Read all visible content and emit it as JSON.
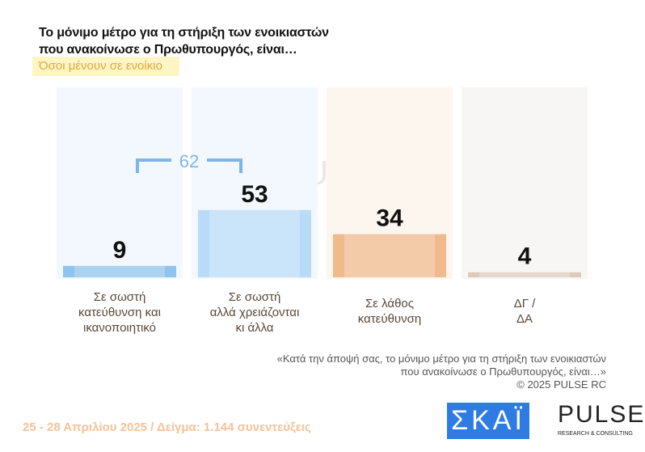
{
  "title_line1": "Το μόνιμο μέτρο για τη στήριξη των ενοικιαστών",
  "title_line2": "που ανακοίνωσε ο Πρωθυπουργός, είναι…",
  "subtitle": "Όσοι μένουν σε ενοίκιο",
  "chart_data": {
    "type": "bar",
    "title": "Το μόνιμο μέτρο για τη στήριξη των ενοικιαστών που ανακοίνωσε ο Πρωθυπουργός, είναι…",
    "categories": [
      "Σε σωστή κατεύθυνση και ικανοποιητικό",
      "Σε σωστή αλλά χρειάζονται κι άλλα",
      "Σε λάθος κατεύθυνση",
      "ΔΓ / ΔΑ"
    ],
    "category_lines": [
      [
        "Σε σωστή",
        "κατεύθυνση και",
        "ικανοποιητικό"
      ],
      [
        "Σε σωστή",
        "αλλά χρειάζονται",
        "κι άλλα"
      ],
      [
        "Σε λάθος",
        "κατεύθυνση"
      ],
      [
        "ΔΓ /",
        "ΔΑ"
      ]
    ],
    "values": [
      9,
      53,
      34,
      4
    ],
    "colors": [
      "#8ec4ee",
      "#b9dbf7",
      "#f0ba8c",
      "#dccbbb"
    ],
    "bg_colors": [
      "#f2f8fd",
      "#f2f8fd",
      "#fdf6ef",
      "#f8f6f5"
    ],
    "bracket": {
      "label": "62",
      "spans": [
        0,
        1
      ],
      "color": "#7fb5e6"
    },
    "ylim": [
      0,
      100
    ]
  },
  "note_line1": "«Κατά την άποψή σας, το μόνιμο μέτρο για τη στήριξη των ενοικιαστών",
  "note_line2": "που ανακοίνωσε ο Πρωθυπουργός, είναι…»",
  "copyright": "©  2025  PULSE RC",
  "footer": "25 - 28 Απριλίου 2025  /  Δείγμα:  1.144 συνεντεύξεις",
  "logo_skai": "ΣΚΑΪ",
  "logo_pulse": "PULSE",
  "logo_pulse_sub": "RESEARCH & CONSULTING"
}
